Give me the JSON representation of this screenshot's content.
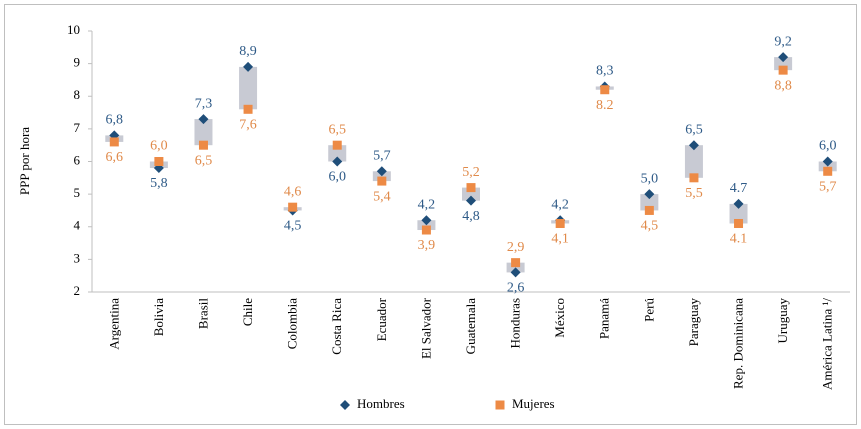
{
  "chart_data": {
    "type": "range-dot",
    "y_label": "PPP por hora",
    "categories": [
      "Argentina",
      "Bolivia",
      "Brasil",
      "Chile",
      "Colombia",
      "Costa Rica",
      "Ecuador",
      "El Salvador",
      "Guatemala",
      "Honduras",
      "México",
      "Panamá",
      "Perú",
      "Paraguay",
      "Rep. Dominicana",
      "Uruguay",
      "América Latina ¹/"
    ],
    "series": [
      {
        "name": "Hombres",
        "color": "#1f4e79",
        "label_color": "#2e5a87",
        "marker": "diamond",
        "values": [
          6.8,
          5.8,
          7.3,
          8.9,
          4.5,
          6.0,
          5.7,
          4.2,
          4.8,
          2.6,
          4.2,
          8.3,
          5.0,
          6.5,
          4.7,
          9.2,
          6.0
        ],
        "value_labels": [
          "6,8",
          "5,8",
          "7,3",
          "8,9",
          "4,5",
          "6,0",
          "5,7",
          "4,2",
          "4,8",
          "2,6",
          "4,2",
          "8,3",
          "5,0",
          "6,5",
          "4.7",
          "9,2",
          "6,0"
        ]
      },
      {
        "name": "Mujeres",
        "color": "#ed8a45",
        "label_color": "#e08a4a",
        "marker": "square",
        "values": [
          6.6,
          6.0,
          6.5,
          7.6,
          4.6,
          6.5,
          5.4,
          3.9,
          5.2,
          2.9,
          4.1,
          8.2,
          4.5,
          5.5,
          4.1,
          8.8,
          5.7
        ],
        "value_labels": [
          "6,6",
          "6,0",
          "6,5",
          "7,6",
          "4,6",
          "6,5",
          "5,4",
          "3,9",
          "5,2",
          "2,9",
          "4,1",
          "8.2",
          "4,5",
          "5,5",
          "4.1",
          "8,8",
          "5,7"
        ]
      }
    ],
    "range_color": "#c8cad3",
    "ylim": [
      2,
      10
    ],
    "yticks": [
      2,
      3,
      4,
      5,
      6,
      7,
      8,
      9,
      10
    ]
  }
}
